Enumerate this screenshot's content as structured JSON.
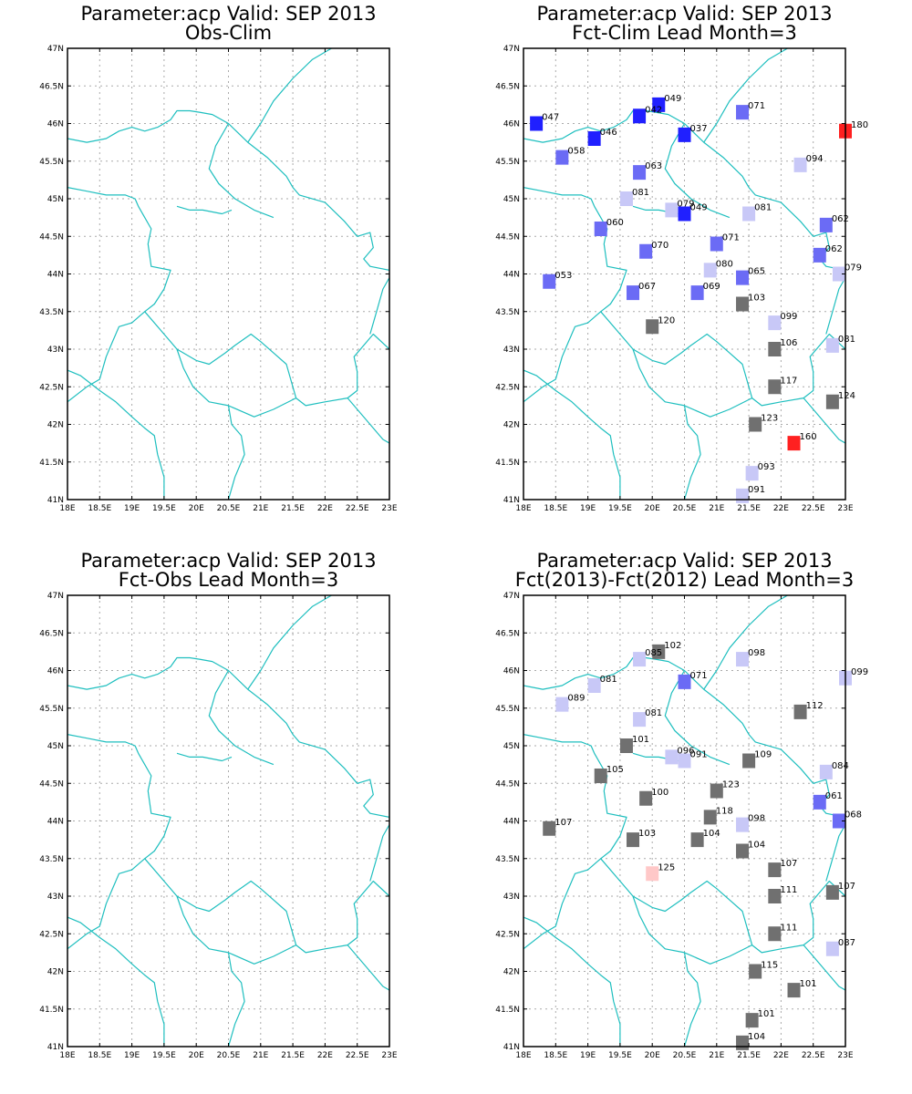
{
  "x_ticks": [
    "18E",
    "18.5E",
    "19E",
    "19.5E",
    "20E",
    "20.5E",
    "21E",
    "21.5E",
    "22E",
    "22.5E",
    "23E"
  ],
  "y_ticks": [
    "41N",
    "41.5N",
    "42N",
    "42.5N",
    "43N",
    "43.5N",
    "44N",
    "44.5N",
    "45N",
    "45.5N",
    "46N",
    "46.5N",
    "47N"
  ],
  "lon_range": [
    18,
    23
  ],
  "lat_range": [
    41,
    47
  ],
  "colors": {
    "border": "#1fbfbf",
    "grid": "#aaaaaa",
    "dark_blue": "#2020ff",
    "mid_blue": "#6b6bf5",
    "light_blue": "#c8c8f7",
    "gray": "#707070",
    "red": "#ff2020",
    "light_red": "#ffc8c8"
  },
  "panels": [
    {
      "title1": "Parameter:acp Valid: SEP 2013",
      "title2": "Obs-Clim",
      "stations": []
    },
    {
      "title1": "Parameter:acp Valid: SEP 2013",
      "title2": "Fct-Clim Lead Month=3",
      "stations": [
        {
          "lon": 18.2,
          "lat": 46.0,
          "label": "047",
          "c": "dark_blue"
        },
        {
          "lon": 20.1,
          "lat": 46.25,
          "label": "049",
          "c": "dark_blue"
        },
        {
          "lon": 19.8,
          "lat": 46.1,
          "label": "042",
          "c": "dark_blue"
        },
        {
          "lon": 21.4,
          "lat": 46.15,
          "label": "071",
          "c": "mid_blue"
        },
        {
          "lon": 23.0,
          "lat": 45.9,
          "label": "180",
          "c": "red"
        },
        {
          "lon": 19.1,
          "lat": 45.8,
          "label": "046",
          "c": "dark_blue"
        },
        {
          "lon": 20.5,
          "lat": 45.85,
          "label": "037",
          "c": "dark_blue"
        },
        {
          "lon": 18.6,
          "lat": 45.55,
          "label": "058",
          "c": "mid_blue"
        },
        {
          "lon": 19.8,
          "lat": 45.35,
          "label": "063",
          "c": "mid_blue"
        },
        {
          "lon": 22.3,
          "lat": 45.45,
          "label": "094",
          "c": "light_blue"
        },
        {
          "lon": 19.6,
          "lat": 45.0,
          "label": "081",
          "c": "light_blue"
        },
        {
          "lon": 20.3,
          "lat": 44.85,
          "label": "079",
          "c": "light_blue"
        },
        {
          "lon": 20.5,
          "lat": 44.8,
          "label": "049",
          "c": "dark_blue"
        },
        {
          "lon": 21.5,
          "lat": 44.8,
          "label": "081",
          "c": "light_blue"
        },
        {
          "lon": 22.7,
          "lat": 44.65,
          "label": "062",
          "c": "mid_blue"
        },
        {
          "lon": 19.2,
          "lat": 44.6,
          "label": "060",
          "c": "mid_blue"
        },
        {
          "lon": 21.0,
          "lat": 44.4,
          "label": "071",
          "c": "mid_blue"
        },
        {
          "lon": 19.9,
          "lat": 44.3,
          "label": "070",
          "c": "mid_blue"
        },
        {
          "lon": 22.6,
          "lat": 44.25,
          "label": "062",
          "c": "mid_blue"
        },
        {
          "lon": 20.9,
          "lat": 44.05,
          "label": "080",
          "c": "light_blue"
        },
        {
          "lon": 21.4,
          "lat": 43.95,
          "label": "065",
          "c": "mid_blue"
        },
        {
          "lon": 22.9,
          "lat": 44.0,
          "label": "079",
          "c": "light_blue"
        },
        {
          "lon": 18.4,
          "lat": 43.9,
          "label": "053",
          "c": "mid_blue"
        },
        {
          "lon": 19.7,
          "lat": 43.75,
          "label": "067",
          "c": "mid_blue"
        },
        {
          "lon": 20.7,
          "lat": 43.75,
          "label": "069",
          "c": "mid_blue"
        },
        {
          "lon": 21.4,
          "lat": 43.6,
          "label": "103",
          "c": "gray"
        },
        {
          "lon": 21.9,
          "lat": 43.35,
          "label": "099",
          "c": "light_blue"
        },
        {
          "lon": 20.0,
          "lat": 43.3,
          "label": "120",
          "c": "gray"
        },
        {
          "lon": 21.9,
          "lat": 43.0,
          "label": "106",
          "c": "gray"
        },
        {
          "lon": 22.8,
          "lat": 43.05,
          "label": "081",
          "c": "light_blue"
        },
        {
          "lon": 21.9,
          "lat": 42.5,
          "label": "117",
          "c": "gray"
        },
        {
          "lon": 22.8,
          "lat": 42.3,
          "label": "124",
          "c": "gray"
        },
        {
          "lon": 21.6,
          "lat": 42.0,
          "label": "123",
          "c": "gray"
        },
        {
          "lon": 22.2,
          "lat": 41.75,
          "label": "160",
          "c": "red"
        },
        {
          "lon": 21.55,
          "lat": 41.35,
          "label": "093",
          "c": "light_blue"
        },
        {
          "lon": 21.4,
          "lat": 41.05,
          "label": "091",
          "c": "light_blue"
        }
      ]
    },
    {
      "title1": "Parameter:acp Valid: SEP 2013",
      "title2": "Fct-Obs Lead Month=3",
      "stations": []
    },
    {
      "title1": "Parameter:acp Valid: SEP 2013",
      "title2": "Fct(2013)-Fct(2012) Lead Month=3",
      "stations": [
        {
          "lon": 20.1,
          "lat": 46.25,
          "label": "102",
          "c": "gray"
        },
        {
          "lon": 19.8,
          "lat": 46.15,
          "label": "085",
          "c": "light_blue"
        },
        {
          "lon": 21.4,
          "lat": 46.15,
          "label": "098",
          "c": "light_blue"
        },
        {
          "lon": 23.0,
          "lat": 45.9,
          "label": "099",
          "c": "light_blue"
        },
        {
          "lon": 19.1,
          "lat": 45.8,
          "label": "081",
          "c": "light_blue"
        },
        {
          "lon": 20.5,
          "lat": 45.85,
          "label": "071",
          "c": "mid_blue"
        },
        {
          "lon": 18.6,
          "lat": 45.55,
          "label": "089",
          "c": "light_blue"
        },
        {
          "lon": 22.3,
          "lat": 45.45,
          "label": "112",
          "c": "gray"
        },
        {
          "lon": 19.8,
          "lat": 45.35,
          "label": "081",
          "c": "light_blue"
        },
        {
          "lon": 19.6,
          "lat": 45.0,
          "label": "101",
          "c": "gray"
        },
        {
          "lon": 20.3,
          "lat": 44.85,
          "label": "096",
          "c": "light_blue"
        },
        {
          "lon": 20.5,
          "lat": 44.8,
          "label": "091",
          "c": "light_blue"
        },
        {
          "lon": 21.5,
          "lat": 44.8,
          "label": "109",
          "c": "gray"
        },
        {
          "lon": 22.7,
          "lat": 44.65,
          "label": "084",
          "c": "light_blue"
        },
        {
          "lon": 19.2,
          "lat": 44.6,
          "label": "105",
          "c": "gray"
        },
        {
          "lon": 21.0,
          "lat": 44.4,
          "label": "123",
          "c": "gray"
        },
        {
          "lon": 19.9,
          "lat": 44.3,
          "label": "100",
          "c": "gray"
        },
        {
          "lon": 22.6,
          "lat": 44.25,
          "label": "061",
          "c": "mid_blue"
        },
        {
          "lon": 20.9,
          "lat": 44.05,
          "label": "118",
          "c": "gray"
        },
        {
          "lon": 21.4,
          "lat": 43.95,
          "label": "098",
          "c": "light_blue"
        },
        {
          "lon": 22.9,
          "lat": 44.0,
          "label": "068",
          "c": "mid_blue"
        },
        {
          "lon": 18.4,
          "lat": 43.9,
          "label": "107",
          "c": "gray"
        },
        {
          "lon": 19.7,
          "lat": 43.75,
          "label": "103",
          "c": "gray"
        },
        {
          "lon": 20.7,
          "lat": 43.75,
          "label": "104",
          "c": "gray"
        },
        {
          "lon": 21.4,
          "lat": 43.6,
          "label": "104",
          "c": "gray"
        },
        {
          "lon": 21.9,
          "lat": 43.35,
          "label": "107",
          "c": "gray"
        },
        {
          "lon": 20.0,
          "lat": 43.3,
          "label": "125",
          "c": "light_red"
        },
        {
          "lon": 21.9,
          "lat": 43.0,
          "label": "111",
          "c": "gray"
        },
        {
          "lon": 22.8,
          "lat": 43.05,
          "label": "107",
          "c": "gray"
        },
        {
          "lon": 21.9,
          "lat": 42.5,
          "label": "111",
          "c": "gray"
        },
        {
          "lon": 22.8,
          "lat": 42.3,
          "label": "087",
          "c": "light_blue"
        },
        {
          "lon": 21.6,
          "lat": 42.0,
          "label": "115",
          "c": "gray"
        },
        {
          "lon": 22.2,
          "lat": 41.75,
          "label": "101",
          "c": "gray"
        },
        {
          "lon": 21.55,
          "lat": 41.35,
          "label": "101",
          "c": "gray"
        },
        {
          "lon": 21.4,
          "lat": 41.05,
          "label": "104",
          "c": "gray"
        }
      ]
    }
  ]
}
